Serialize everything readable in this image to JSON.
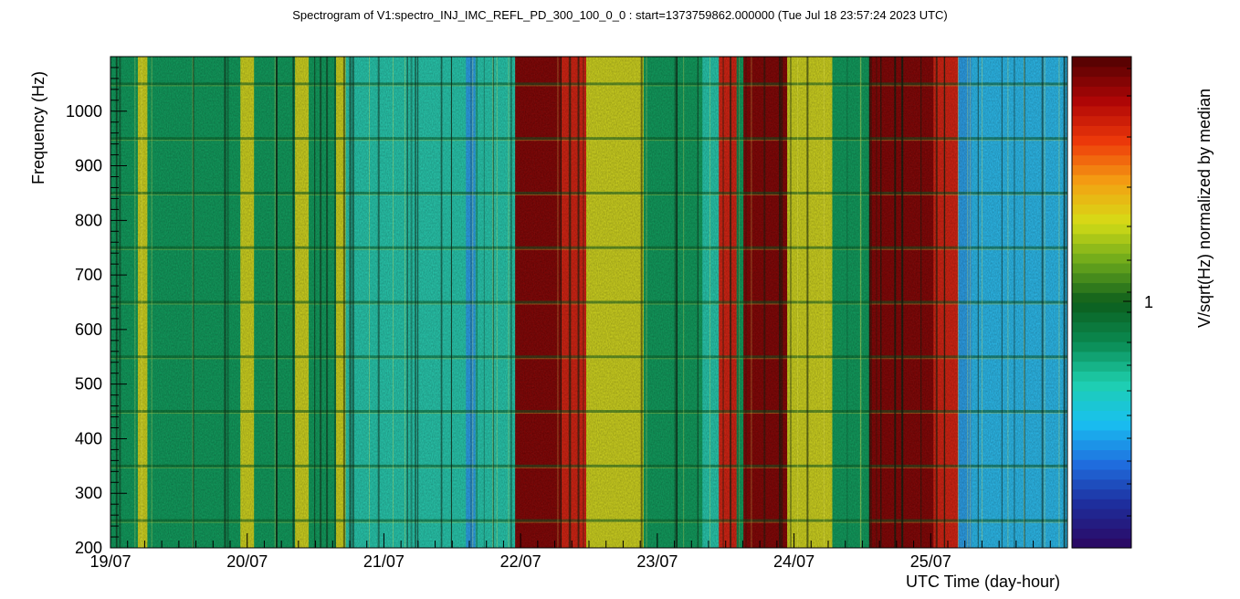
{
  "chart_data": {
    "type": "heatmap",
    "title": "Spectrogram of V1:spectro_INJ_IMC_REFL_PD_300_100_0_0 : start=1373759862.000000 (Tue Jul 18 23:57:24 2023 UTC)",
    "xlabel": "UTC Time (day-hour)",
    "ylabel": "Frequency (Hz)",
    "zlabel": "V/sqrt(Hz) normalized by median",
    "x_tick_labels": [
      "19/07",
      "20/07",
      "21/07",
      "22/07",
      "23/07",
      "24/07",
      "25/07"
    ],
    "x_days_start": "19/07",
    "x_range_days": [
      0,
      7
    ],
    "y_ticks": [
      200,
      300,
      400,
      500,
      600,
      700,
      800,
      900,
      1000
    ],
    "ylim": [
      200,
      1100
    ],
    "z_tick_labels": [
      "1"
    ],
    "grid": false,
    "colormap": "rainbow (purple-blue-cyan-green-yellow-red-darkred)",
    "segments": [
      {
        "x_start_days": 0.0,
        "x_end_days": 0.2,
        "level": "green"
      },
      {
        "x_start_days": 0.2,
        "x_end_days": 0.27,
        "level": "yellow"
      },
      {
        "x_start_days": 0.27,
        "x_end_days": 0.95,
        "level": "green"
      },
      {
        "x_start_days": 0.95,
        "x_end_days": 1.05,
        "level": "yellow"
      },
      {
        "x_start_days": 1.05,
        "x_end_days": 1.35,
        "level": "green"
      },
      {
        "x_start_days": 1.35,
        "x_end_days": 1.45,
        "level": "yellow"
      },
      {
        "x_start_days": 1.45,
        "x_end_days": 1.65,
        "level": "green"
      },
      {
        "x_start_days": 1.65,
        "x_end_days": 1.72,
        "level": "yellow"
      },
      {
        "x_start_days": 1.72,
        "x_end_days": 2.6,
        "level": "cyan"
      },
      {
        "x_start_days": 2.6,
        "x_end_days": 2.67,
        "level": "blue"
      },
      {
        "x_start_days": 2.67,
        "x_end_days": 2.96,
        "level": "cyan"
      },
      {
        "x_start_days": 2.96,
        "x_end_days": 3.3,
        "level": "darkred"
      },
      {
        "x_start_days": 3.3,
        "x_end_days": 3.48,
        "level": "red"
      },
      {
        "x_start_days": 3.48,
        "x_end_days": 3.9,
        "level": "yellow"
      },
      {
        "x_start_days": 3.9,
        "x_end_days": 4.33,
        "level": "green"
      },
      {
        "x_start_days": 4.33,
        "x_end_days": 4.45,
        "level": "cyan"
      },
      {
        "x_start_days": 4.45,
        "x_end_days": 4.58,
        "level": "red"
      },
      {
        "x_start_days": 4.58,
        "x_end_days": 4.63,
        "level": "green"
      },
      {
        "x_start_days": 4.63,
        "x_end_days": 4.95,
        "level": "darkred"
      },
      {
        "x_start_days": 4.95,
        "x_end_days": 5.28,
        "level": "yellow"
      },
      {
        "x_start_days": 5.28,
        "x_end_days": 5.55,
        "level": "green"
      },
      {
        "x_start_days": 5.55,
        "x_end_days": 6.02,
        "level": "darkred"
      },
      {
        "x_start_days": 6.02,
        "x_end_days": 6.2,
        "level": "red"
      },
      {
        "x_start_days": 6.2,
        "x_end_days": 6.3,
        "level": "blue"
      },
      {
        "x_start_days": 6.3,
        "x_end_days": 7.0,
        "level": "lightblue"
      }
    ],
    "harmonic_lines_hz": [
      250,
      350,
      450,
      550,
      650,
      750,
      850,
      950,
      1050
    ]
  },
  "palette": {
    "green": "#10975a",
    "yellow": "#c8cc1e",
    "cyan": "#26c2a8",
    "blue": "#2a9ae0",
    "lightblue": "#2ab4e4",
    "red": "#cc2212",
    "darkred": "#7e0606"
  },
  "colorbar": [
    "#2a0a66",
    "#1e2f9e",
    "#1f6fe0",
    "#19c0f0",
    "#1ecfae",
    "#0a8a52",
    "#0c5e1c",
    "#6aa81c",
    "#d6dc16",
    "#f4a012",
    "#ee3a0a",
    "#b00606",
    "#5a0202"
  ]
}
